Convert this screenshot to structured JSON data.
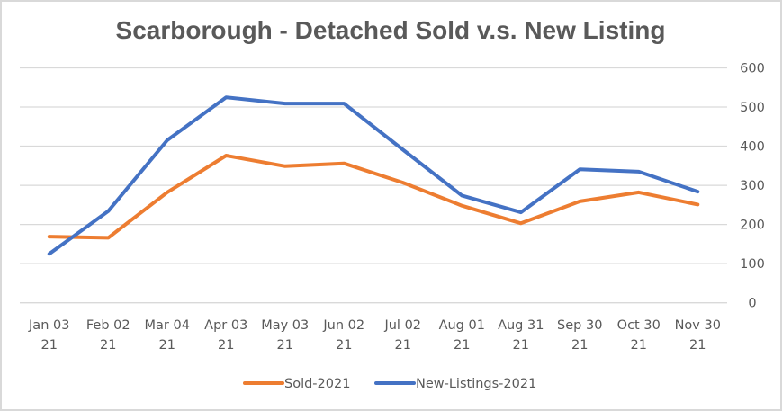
{
  "chart_data": {
    "type": "line",
    "title": "Scarborough - Detached Sold v.s. New Listing",
    "xlabel": "",
    "ylabel": "",
    "ylim": [
      0,
      600
    ],
    "yticks": [
      "0",
      "100",
      "200",
      "300",
      "400",
      "500",
      "600"
    ],
    "y_axis_side": "right",
    "grid": true,
    "legend_position": "bottom",
    "categories": [
      [
        "Jan 03",
        "21"
      ],
      [
        "Feb 02",
        "21"
      ],
      [
        "Mar 04",
        "21"
      ],
      [
        "Apr 03",
        "21"
      ],
      [
        "May 03",
        "21"
      ],
      [
        "Jun 02",
        "21"
      ],
      [
        "Jul 02",
        "21"
      ],
      [
        "Aug 01",
        "21"
      ],
      [
        "Aug 31",
        "21"
      ],
      [
        "Sep 30",
        "21"
      ],
      [
        "Oct 30",
        "21"
      ],
      [
        "Nov 30",
        "21"
      ]
    ],
    "series": [
      {
        "name": "Sold-2021",
        "color": "#ed7d31",
        "values": [
          169,
          166,
          282,
          376,
          349,
          356,
          307,
          248,
          203,
          259,
          282,
          251
        ]
      },
      {
        "name": "New-Listings-2021",
        "color": "#4472c4",
        "values": [
          125,
          234,
          415,
          525,
          509,
          509,
          391,
          274,
          231,
          341,
          335,
          284
        ]
      }
    ]
  }
}
